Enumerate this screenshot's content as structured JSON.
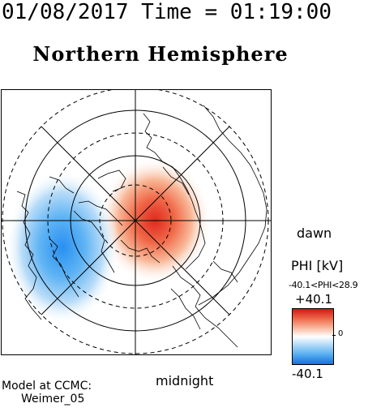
{
  "header": {
    "timestamp": "01/08/2017 Time = 01:19:00",
    "title": "Northern Hemisphere"
  },
  "map": {
    "labels": {
      "dawn": "dawn",
      "midnight": "midnight"
    }
  },
  "colorbar": {
    "title": "PHI [kV]",
    "range_text": "-40.1<PHI<28.9",
    "max_label": "+40.1",
    "zero_label": "0",
    "min_label": "-40.1",
    "colors": {
      "positive": "#d01818",
      "neutral": "#ffffff",
      "negative": "#1870e0"
    }
  },
  "footer": {
    "model_line1": "Model at CCMC:",
    "model_line2": "Weimer_05"
  }
}
